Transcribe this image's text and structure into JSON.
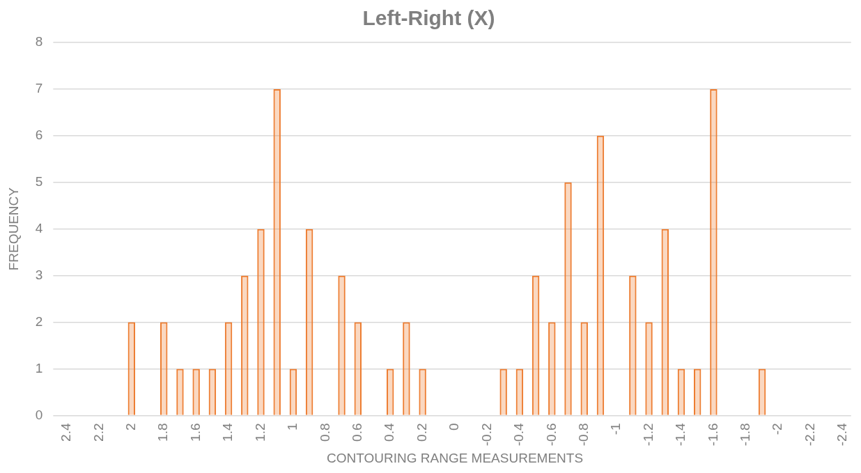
{
  "chart_data": {
    "type": "bar",
    "title": "Left-Right (X)",
    "xlabel": "CONTOURING RANGE MEASUREMENTS",
    "ylabel": "FREQUENCY",
    "categories": [
      "2.4",
      null,
      "2.2",
      null,
      "2",
      null,
      "1.8",
      null,
      "1.6",
      null,
      "1.4",
      null,
      "1.2",
      null,
      "1",
      null,
      "0.8",
      null,
      "0.6",
      null,
      "0.4",
      null,
      "0.2",
      null,
      "0",
      null,
      "-0.2",
      null,
      "-0.4",
      null,
      "-0.6",
      null,
      "-0.8",
      null,
      "-1",
      null,
      "-1.2",
      null,
      "-1.4",
      null,
      "-1.6",
      null,
      "-1.8",
      null,
      "-2",
      null,
      "-2.2",
      null,
      "-2.4"
    ],
    "values": [
      0,
      0,
      0,
      0,
      2,
      0,
      2,
      1,
      1,
      1,
      2,
      3,
      4,
      7,
      1,
      4,
      0,
      3,
      2,
      0,
      1,
      2,
      1,
      0,
      0,
      0,
      0,
      1,
      1,
      3,
      2,
      5,
      2,
      6,
      0,
      3,
      2,
      4,
      1,
      1,
      7,
      0,
      0,
      1,
      0,
      0,
      0,
      0,
      0
    ],
    "color": "#ed7d31",
    "ylim": [
      0,
      8
    ],
    "yticks": [
      0,
      1,
      2,
      3,
      4,
      5,
      6,
      7,
      8
    ],
    "grid": "y"
  }
}
